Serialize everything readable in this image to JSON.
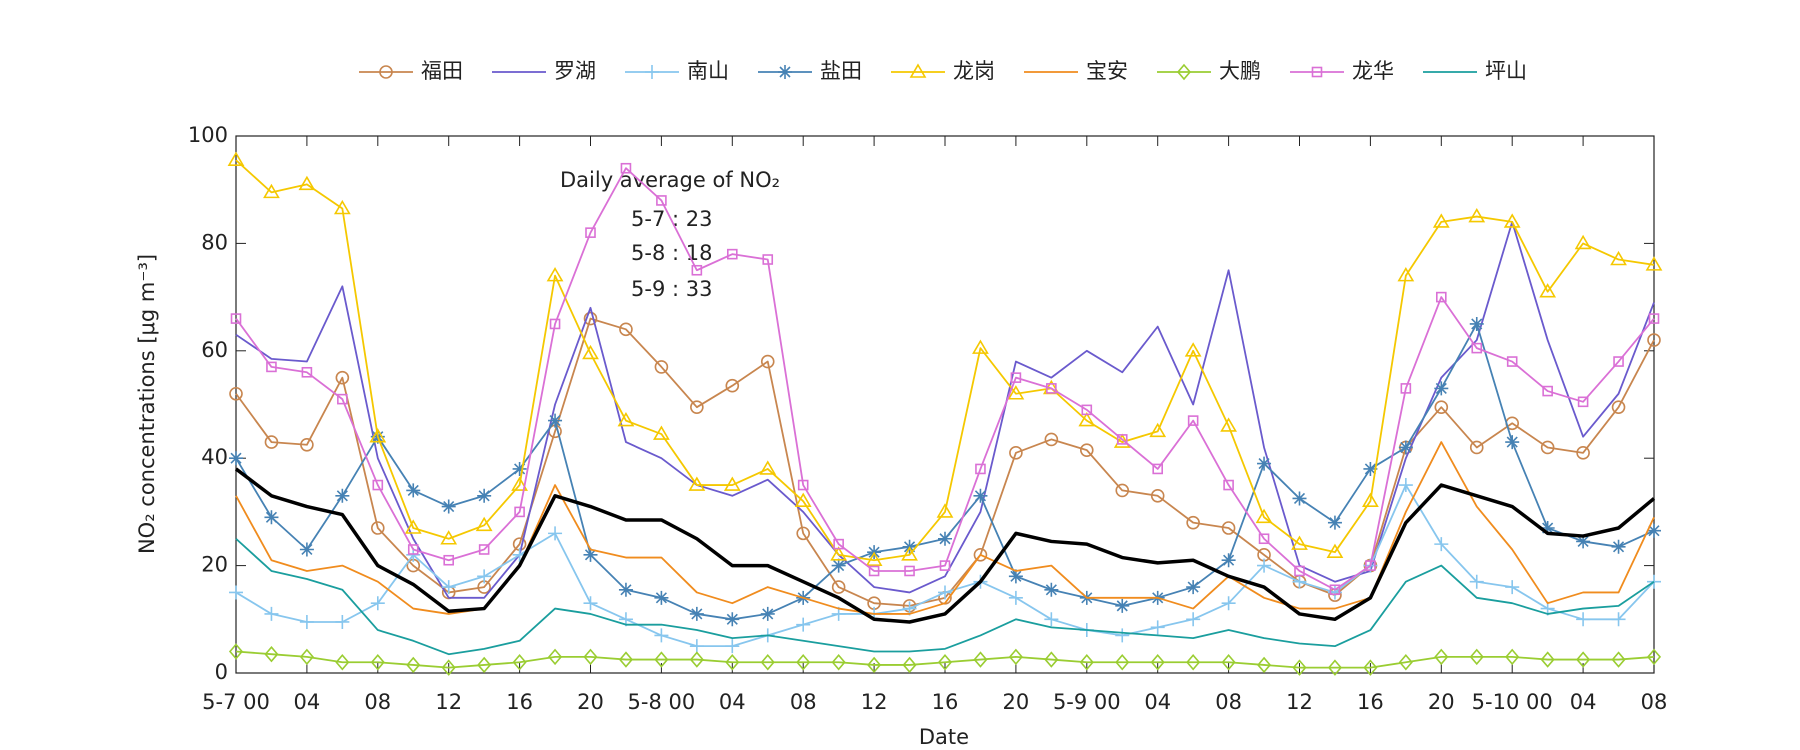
{
  "chart_data": {
    "type": "line",
    "xlabel": "Date",
    "ylabel": "NO₂ concentrations [μg m⁻³]",
    "annotation": {
      "title": "Daily average of NO₂",
      "lines": [
        "5-7 : 23",
        "5-8 : 18",
        "5-9 : 33"
      ]
    },
    "xlim": [
      0,
      80
    ],
    "ylim": [
      0,
      100
    ],
    "yticks": [
      0,
      20,
      40,
      60,
      80,
      100
    ],
    "xticks": [
      {
        "value": 0,
        "label": "5-7 00"
      },
      {
        "value": 4,
        "label": "04"
      },
      {
        "value": 8,
        "label": "08"
      },
      {
        "value": 12,
        "label": "12"
      },
      {
        "value": 16,
        "label": "16"
      },
      {
        "value": 20,
        "label": "20"
      },
      {
        "value": 24,
        "label": "5-8 00"
      },
      {
        "value": 28,
        "label": "04"
      },
      {
        "value": 32,
        "label": "08"
      },
      {
        "value": 36,
        "label": "12"
      },
      {
        "value": 40,
        "label": "16"
      },
      {
        "value": 44,
        "label": "20"
      },
      {
        "value": 48,
        "label": "5-9 00"
      },
      {
        "value": 52,
        "label": "04"
      },
      {
        "value": 56,
        "label": "08"
      },
      {
        "value": 60,
        "label": "12"
      },
      {
        "value": 64,
        "label": "16"
      },
      {
        "value": 68,
        "label": "20"
      },
      {
        "value": 72,
        "label": "5-10 00"
      },
      {
        "value": 76,
        "label": "04"
      },
      {
        "value": 80,
        "label": "08"
      }
    ],
    "x": [
      0,
      2,
      4,
      6,
      8,
      10,
      12,
      14,
      16,
      18,
      20,
      22,
      24,
      26,
      28,
      30,
      32,
      34,
      36,
      38,
      40,
      42,
      44,
      46,
      48,
      50,
      52,
      54,
      56,
      58,
      60,
      62,
      64,
      66,
      68,
      70,
      72,
      74,
      76,
      78,
      80
    ],
    "series": [
      {
        "name": "福田",
        "color": "#c8864f",
        "marker": "circle",
        "values": [
          52,
          43,
          42.5,
          55,
          27,
          20,
          15,
          16,
          24,
          45,
          66,
          64,
          57,
          49.5,
          53.5,
          58,
          26,
          16,
          13,
          12.5,
          14,
          22,
          41,
          43.5,
          41.5,
          34,
          33,
          28,
          27,
          22,
          17,
          14.5,
          20,
          42,
          49.5,
          42,
          46.5,
          42,
          41,
          49.5,
          62
        ]
      },
      {
        "name": "罗湖",
        "color": "#6a5acd",
        "marker": "none",
        "values": [
          63,
          58.5,
          58,
          72,
          40,
          25,
          14,
          14,
          22,
          50,
          68,
          43,
          40,
          35,
          33,
          36,
          30,
          22,
          16,
          15,
          18,
          30,
          58,
          55,
          60,
          56,
          64.5,
          50,
          75,
          42,
          20,
          17,
          19,
          40,
          55,
          62,
          84,
          62,
          44,
          52,
          69
        ]
      },
      {
        "name": "南山",
        "color": "#87c6ee",
        "marker": "plus",
        "values": [
          15,
          11,
          9.5,
          9.5,
          13,
          22,
          16,
          18,
          22,
          26,
          13,
          10,
          7,
          5,
          5,
          7,
          9,
          11,
          11,
          12,
          15,
          17,
          14,
          10,
          8,
          7,
          8.5,
          10,
          13,
          20,
          17,
          15,
          20,
          35,
          24,
          17,
          16,
          12,
          10,
          10,
          17
        ]
      },
      {
        "name": "盐田",
        "color": "#4682b4",
        "marker": "asterisk",
        "values": [
          40,
          29,
          23,
          33,
          44,
          34,
          31,
          33,
          38,
          47,
          22,
          15.5,
          14,
          11,
          10,
          11,
          14,
          20,
          22.5,
          23.5,
          25,
          33,
          18,
          15.5,
          14,
          12.5,
          14,
          16,
          21,
          39,
          32.5,
          28,
          38,
          42,
          53,
          65,
          43,
          27,
          24.5,
          23.5,
          26.5
        ]
      },
      {
        "name": "龙岗",
        "color": "#f5c800",
        "marker": "triangle",
        "values": [
          95.5,
          89.5,
          91,
          86.5,
          44,
          27,
          25,
          27.5,
          35,
          74,
          59.5,
          47,
          44.5,
          35,
          35,
          38,
          32,
          22,
          21,
          22,
          30,
          60.5,
          52,
          53,
          47,
          43,
          45,
          60,
          46,
          29,
          24,
          22.5,
          32,
          74,
          84,
          85,
          84,
          71,
          80,
          77,
          76
        ]
      },
      {
        "name": "宝安",
        "color": "#f08c1e",
        "marker": "none",
        "values": [
          33,
          21,
          19,
          20,
          17,
          12,
          11,
          12,
          20,
          35,
          23,
          21.5,
          21.5,
          15,
          13,
          16,
          14,
          12,
          11,
          11,
          13,
          22,
          19,
          20,
          14,
          14,
          14,
          12,
          18,
          14,
          12,
          12,
          14,
          30,
          43,
          31,
          23,
          13,
          15,
          15,
          29
        ]
      },
      {
        "name": "大鹏",
        "color": "#9acd32",
        "marker": "diamond",
        "values": [
          4,
          3.5,
          3,
          2,
          2,
          1.5,
          1,
          1.5,
          2,
          3,
          3,
          2.5,
          2.5,
          2.5,
          2,
          2,
          2,
          2,
          1.5,
          1.5,
          2,
          2.5,
          3,
          2.5,
          2,
          2,
          2,
          2,
          2,
          1.5,
          1,
          1,
          1,
          2,
          3,
          3,
          3,
          2.5,
          2.5,
          2.5,
          3
        ]
      },
      {
        "name": "龙华",
        "color": "#da70d6",
        "marker": "square",
        "values": [
          66,
          57,
          56,
          51,
          35,
          23,
          21,
          23,
          30,
          65,
          82,
          94,
          88,
          75,
          78,
          77,
          35,
          24,
          19,
          19,
          20,
          38,
          55,
          53,
          49,
          43.5,
          38,
          47,
          35,
          25,
          19,
          15.5,
          20,
          53,
          70,
          60.5,
          58,
          52.5,
          50.5,
          58,
          66
        ]
      },
      {
        "name": "坪山",
        "color": "#1a9e9e",
        "marker": "none",
        "values": [
          25,
          19,
          17.5,
          15.5,
          8,
          6,
          3.5,
          4.5,
          6,
          12,
          11,
          9,
          9,
          8,
          6.5,
          7,
          6,
          5,
          4,
          4,
          4.5,
          7,
          10,
          8.5,
          8,
          7.5,
          7,
          6.5,
          8,
          6.5,
          5.5,
          5,
          8,
          17,
          20,
          14,
          13,
          11,
          12,
          12.5,
          17
        ]
      },
      {
        "color": "#000000",
        "marker": "none",
        "line_width": 3.5,
        "values": [
          38,
          33,
          31,
          29.5,
          20,
          16.5,
          11.5,
          12,
          20,
          33,
          31,
          28.5,
          28.5,
          25,
          20,
          20,
          17,
          14,
          10,
          9.5,
          11,
          17,
          26,
          24.5,
          24,
          21.5,
          20.5,
          21,
          18,
          16,
          11,
          10,
          14,
          28,
          35,
          33,
          31,
          26,
          25.5,
          27,
          32.5
        ]
      }
    ]
  }
}
